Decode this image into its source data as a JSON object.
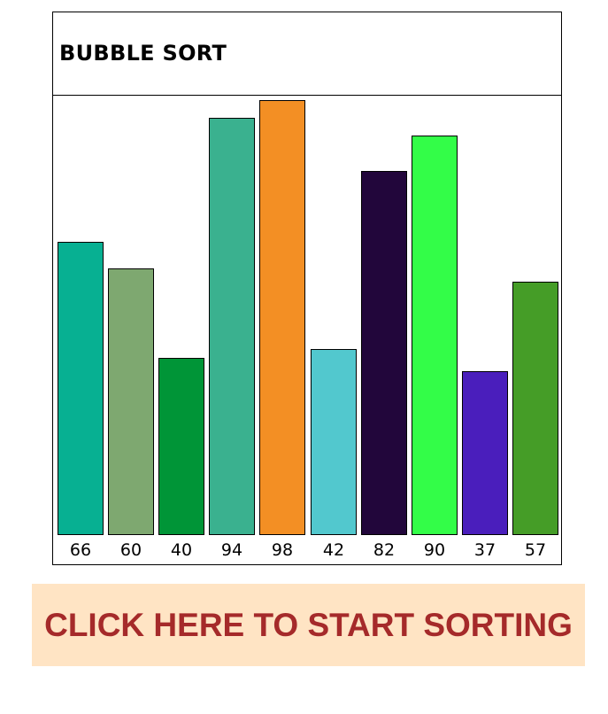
{
  "title": "BUBBLE SORT",
  "button": {
    "label": "CLICK HERE TO START SORTING"
  },
  "chart_data": {
    "type": "bar",
    "title": "BUBBLE SORT",
    "values": [
      66,
      60,
      40,
      94,
      98,
      42,
      82,
      90,
      37,
      57
    ],
    "categories": [
      "66",
      "60",
      "40",
      "94",
      "98",
      "42",
      "82",
      "90",
      "37",
      "57"
    ],
    "colors": [
      "#07b092",
      "#7ea870",
      "#009537",
      "#3ab18f",
      "#f38f24",
      "#52c8ce",
      "#22063b",
      "#33fd48",
      "#4a1ebc",
      "#459d27"
    ],
    "ylim": [
      0,
      98
    ],
    "grid": false,
    "legend": "none"
  },
  "colors": {
    "button_bg": "#ffe4c4",
    "button_text": "#a52a2a"
  }
}
